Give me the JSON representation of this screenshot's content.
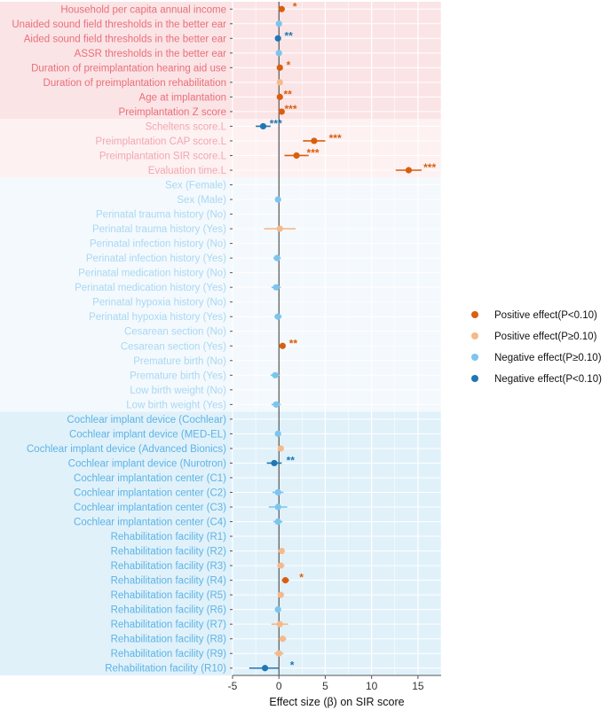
{
  "chart_data": {
    "type": "forest",
    "xlabel": "Effect size (β) on SIR score",
    "xlim": [
      -5,
      17.5
    ],
    "xticks": [
      -5,
      0,
      5,
      10,
      15
    ],
    "legend": [
      {
        "key": "pos_sig",
        "label": "Positive effect(P<0.10)",
        "color": "#d95f0e"
      },
      {
        "key": "pos_ns",
        "label": "Positive effect(P≥0.10)",
        "color": "#f5b98a"
      },
      {
        "key": "neg_ns",
        "label": "Negative effect(P≥0.10)",
        "color": "#7cc5ee"
      },
      {
        "key": "neg_sig",
        "label": "Negative effect(P<0.10)",
        "color": "#1f77b4"
      }
    ],
    "group_label_colors": [
      "#e8707a",
      "#f2a8b0",
      "#a9d8f2",
      "#5cb4e6"
    ],
    "group_bg_colors": [
      "#fbe4e6",
      "#fdf1f2",
      "#f4f9fd",
      "#e1f1fa"
    ],
    "rows": [
      {
        "label": "Household per capita annual income",
        "group": 0,
        "est": 0.3,
        "lo": 0.1,
        "hi": 0.5,
        "cat": "pos_sig",
        "stars": "*",
        "star_x": 1.5
      },
      {
        "label": "Unaided sound field thresholds in the better ear",
        "group": 0,
        "est": 0.0,
        "lo": -0.1,
        "hi": 0.1,
        "cat": "neg_ns",
        "stars": "",
        "star_x": 0
      },
      {
        "label": "Aided sound field thresholds in the better ear",
        "group": 0,
        "est": -0.1,
        "lo": -0.3,
        "hi": 0.1,
        "cat": "neg_sig",
        "stars": "**",
        "star_x": 0.6
      },
      {
        "label": "ASSR thresholds in the better ear",
        "group": 0,
        "est": 0.0,
        "lo": -0.1,
        "hi": 0.1,
        "cat": "neg_ns",
        "stars": "",
        "star_x": 0
      },
      {
        "label": "Duration of preimplantation hearing aid use",
        "group": 0,
        "est": 0.1,
        "lo": -0.1,
        "hi": 0.3,
        "cat": "pos_sig",
        "stars": "*",
        "star_x": 0.8
      },
      {
        "label": "Duration of preimplantation rehabilitation",
        "group": 0,
        "est": 0.1,
        "lo": -0.1,
        "hi": 0.3,
        "cat": "pos_ns",
        "stars": "",
        "star_x": 0
      },
      {
        "label": "Age at implantation",
        "group": 0,
        "est": 0.1,
        "lo": -0.2,
        "hi": 0.4,
        "cat": "pos_sig",
        "stars": "**",
        "star_x": 0.5
      },
      {
        "label": "Preimplantation Z score",
        "group": 0,
        "est": 0.3,
        "lo": 0.0,
        "hi": 0.6,
        "cat": "pos_sig",
        "stars": "***",
        "star_x": 0.6
      },
      {
        "label": "Scheltens score.L",
        "group": 1,
        "est": -1.7,
        "lo": -2.5,
        "hi": -0.9,
        "cat": "neg_sig",
        "stars": "***",
        "star_x": -1.0
      },
      {
        "label": "Preimplantation CAP score.L",
        "group": 1,
        "est": 3.8,
        "lo": 2.6,
        "hi": 5.0,
        "cat": "pos_sig",
        "stars": "***",
        "star_x": 5.4
      },
      {
        "label": "Preimplantation SIR score.L",
        "group": 1,
        "est": 1.9,
        "lo": 0.6,
        "hi": 3.2,
        "cat": "pos_sig",
        "stars": "***",
        "star_x": 3.0
      },
      {
        "label": "Evaluation time.L",
        "group": 1,
        "est": 14.0,
        "lo": 12.6,
        "hi": 15.4,
        "cat": "pos_sig",
        "stars": "***",
        "star_x": 15.6
      },
      {
        "label": "Sex (Female)",
        "group": 2,
        "est": null,
        "lo": null,
        "hi": null,
        "cat": "",
        "stars": "",
        "star_x": 0
      },
      {
        "label": "Sex (Male)",
        "group": 2,
        "est": -0.1,
        "lo": -0.3,
        "hi": 0.1,
        "cat": "neg_ns",
        "stars": "",
        "star_x": 0
      },
      {
        "label": "Perinatal trauma history (No)",
        "group": 2,
        "est": null,
        "lo": null,
        "hi": null,
        "cat": "",
        "stars": "",
        "star_x": 0
      },
      {
        "label": "Perinatal trauma history (Yes)",
        "group": 2,
        "est": 0.1,
        "lo": -1.6,
        "hi": 1.8,
        "cat": "pos_ns",
        "stars": "",
        "star_x": 0
      },
      {
        "label": "Perinatal infection history (No)",
        "group": 2,
        "est": null,
        "lo": null,
        "hi": null,
        "cat": "",
        "stars": "",
        "star_x": 0
      },
      {
        "label": "Perinatal infection history (Yes)",
        "group": 2,
        "est": -0.2,
        "lo": -0.6,
        "hi": 0.2,
        "cat": "neg_ns",
        "stars": "",
        "star_x": 0
      },
      {
        "label": "Perinatal medication history (No)",
        "group": 2,
        "est": null,
        "lo": null,
        "hi": null,
        "cat": "",
        "stars": "",
        "star_x": 0
      },
      {
        "label": "Perinatal medication history (Yes)",
        "group": 2,
        "est": -0.3,
        "lo": -0.8,
        "hi": 0.2,
        "cat": "neg_ns",
        "stars": "",
        "star_x": 0
      },
      {
        "label": "Perinatal hypoxia history (No)",
        "group": 2,
        "est": null,
        "lo": null,
        "hi": null,
        "cat": "",
        "stars": "",
        "star_x": 0
      },
      {
        "label": "Perinatal hypoxia history (Yes)",
        "group": 2,
        "est": -0.1,
        "lo": -0.5,
        "hi": 0.3,
        "cat": "neg_ns",
        "stars": "",
        "star_x": 0
      },
      {
        "label": "Cesarean section (No)",
        "group": 2,
        "est": null,
        "lo": null,
        "hi": null,
        "cat": "",
        "stars": "",
        "star_x": 0
      },
      {
        "label": "Cesarean section (Yes)",
        "group": 2,
        "est": 0.4,
        "lo": 0.1,
        "hi": 0.7,
        "cat": "pos_sig",
        "stars": "**",
        "star_x": 1.1
      },
      {
        "label": "Premature birth (No)",
        "group": 2,
        "est": null,
        "lo": null,
        "hi": null,
        "cat": "",
        "stars": "",
        "star_x": 0
      },
      {
        "label": "Premature birth (Yes)",
        "group": 2,
        "est": -0.4,
        "lo": -0.9,
        "hi": 0.1,
        "cat": "neg_ns",
        "stars": "",
        "star_x": 0
      },
      {
        "label": "Low birth weight (No)",
        "group": 2,
        "est": null,
        "lo": null,
        "hi": null,
        "cat": "",
        "stars": "",
        "star_x": 0
      },
      {
        "label": "Low birth weight (Yes)",
        "group": 2,
        "est": -0.3,
        "lo": -0.8,
        "hi": 0.2,
        "cat": "neg_ns",
        "stars": "",
        "star_x": 0
      },
      {
        "label": "Cochlear implant device (Cochlear)",
        "group": 3,
        "est": null,
        "lo": null,
        "hi": null,
        "cat": "",
        "stars": "",
        "star_x": 0
      },
      {
        "label": "Cochlear implant device (MED-EL)",
        "group": 3,
        "est": -0.1,
        "lo": -0.4,
        "hi": 0.2,
        "cat": "neg_ns",
        "stars": "",
        "star_x": 0
      },
      {
        "label": "Cochlear implant device (Advanced Bionics)",
        "group": 3,
        "est": 0.2,
        "lo": -0.1,
        "hi": 0.5,
        "cat": "pos_ns",
        "stars": "",
        "star_x": 0
      },
      {
        "label": "Cochlear implant device (Nurotron)",
        "group": 3,
        "est": -0.5,
        "lo": -1.3,
        "hi": 0.3,
        "cat": "neg_sig",
        "stars": "**",
        "star_x": 0.8
      },
      {
        "label": "Cochlear implantation center (C1)",
        "group": 3,
        "est": null,
        "lo": null,
        "hi": null,
        "cat": "",
        "stars": "",
        "star_x": 0
      },
      {
        "label": "Cochlear implantation center (C2)",
        "group": 3,
        "est": -0.1,
        "lo": -0.7,
        "hi": 0.5,
        "cat": "neg_ns",
        "stars": "",
        "star_x": 0
      },
      {
        "label": "Cochlear implantation center (C3)",
        "group": 3,
        "est": -0.1,
        "lo": -1.1,
        "hi": 0.9,
        "cat": "neg_ns",
        "stars": "",
        "star_x": 0
      },
      {
        "label": "Cochlear implantation center (C4)",
        "group": 3,
        "est": -0.1,
        "lo": -0.6,
        "hi": 0.4,
        "cat": "neg_ns",
        "stars": "",
        "star_x": 0
      },
      {
        "label": "Rehabilitation facility (R1)",
        "group": 3,
        "est": null,
        "lo": null,
        "hi": null,
        "cat": "",
        "stars": "",
        "star_x": 0
      },
      {
        "label": "Rehabilitation facility (R2)",
        "group": 3,
        "est": 0.3,
        "lo": 0.0,
        "hi": 0.6,
        "cat": "pos_ns",
        "stars": "",
        "star_x": 0
      },
      {
        "label": "Rehabilitation facility (R3)",
        "group": 3,
        "est": 0.2,
        "lo": -0.2,
        "hi": 0.6,
        "cat": "pos_ns",
        "stars": "",
        "star_x": 0
      },
      {
        "label": "Rehabilitation facility (R4)",
        "group": 3,
        "est": 0.7,
        "lo": 0.3,
        "hi": 1.1,
        "cat": "pos_sig",
        "stars": "*",
        "star_x": 2.2
      },
      {
        "label": "Rehabilitation facility (R5)",
        "group": 3,
        "est": 0.2,
        "lo": -0.1,
        "hi": 0.5,
        "cat": "pos_ns",
        "stars": "",
        "star_x": 0
      },
      {
        "label": "Rehabilitation facility (R6)",
        "group": 3,
        "est": -0.1,
        "lo": -0.4,
        "hi": 0.2,
        "cat": "neg_ns",
        "stars": "",
        "star_x": 0
      },
      {
        "label": "Rehabilitation facility (R7)",
        "group": 3,
        "est": 0.1,
        "lo": -0.8,
        "hi": 1.0,
        "cat": "pos_ns",
        "stars": "",
        "star_x": 0
      },
      {
        "label": "Rehabilitation facility (R8)",
        "group": 3,
        "est": 0.4,
        "lo": 0.0,
        "hi": 0.8,
        "cat": "pos_ns",
        "stars": "",
        "star_x": 0
      },
      {
        "label": "Rehabilitation facility (R9)",
        "group": 3,
        "est": 0.0,
        "lo": -0.5,
        "hi": 0.5,
        "cat": "pos_ns",
        "stars": "",
        "star_x": 0
      },
      {
        "label": "Rehabilitation facility (R10)",
        "group": 3,
        "est": -1.5,
        "lo": -3.2,
        "hi": 0.0,
        "cat": "neg_sig",
        "stars": "*",
        "star_x": 1.2
      }
    ]
  }
}
